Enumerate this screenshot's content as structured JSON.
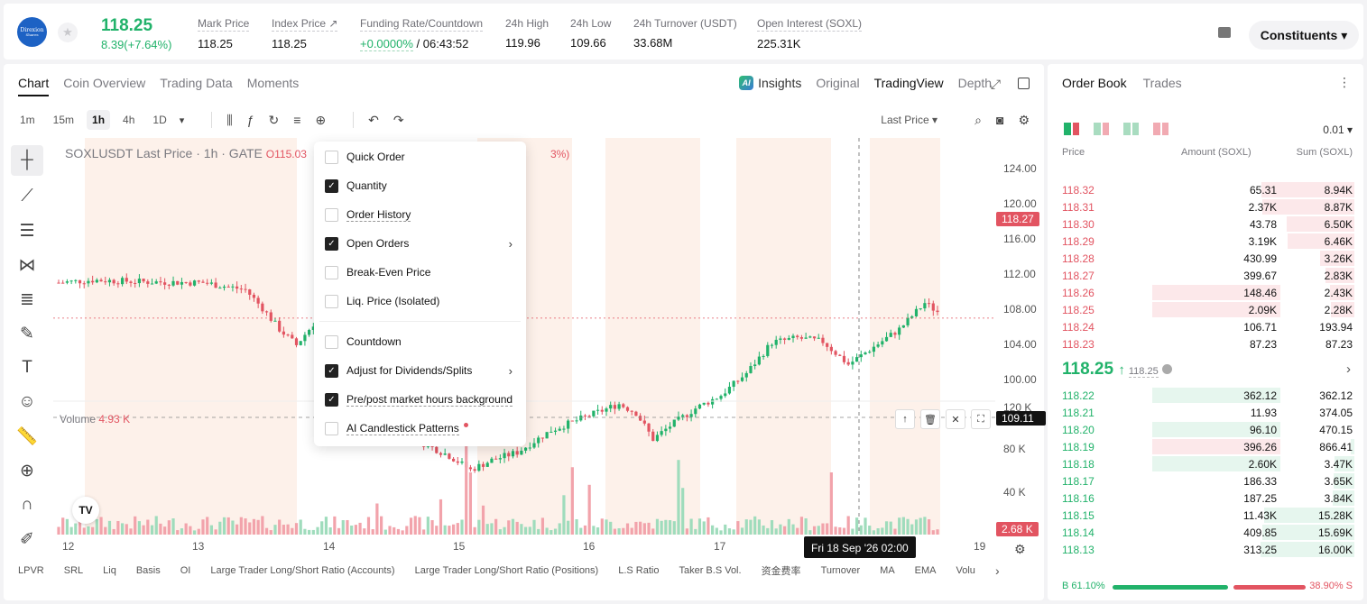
{
  "header": {
    "logo_text": "Direxion",
    "logo_sub": "Shares",
    "last_price": "118.25",
    "change": "8.39(+7.64%)",
    "stats": [
      {
        "label": "Mark Price",
        "value": "118.25"
      },
      {
        "label": "Index Price ↗",
        "value": "118.25"
      },
      {
        "label": "Funding Rate/Countdown",
        "value_green": "+0.0000%",
        "value": " / 06:43:52"
      },
      {
        "label": "24h High",
        "value": "119.96"
      },
      {
        "label": "24h Low",
        "value": "109.66"
      },
      {
        "label": "24h Turnover (USDT)",
        "value": "33.68M"
      },
      {
        "label": "Open Interest (SOXL)",
        "value": "225.31K"
      }
    ],
    "constituents_label": "Constituents ▾"
  },
  "chart_tabs": [
    "Chart",
    "Coin Overview",
    "Trading Data",
    "Moments"
  ],
  "views": {
    "insights": "Insights",
    "original": "Original",
    "tradingview": "TradingView",
    "depth": "Depth"
  },
  "timeframes": [
    "1m",
    "15m",
    "1h",
    "4h",
    "1D"
  ],
  "timeframe_dropdown": "▾",
  "last_price_selector": "Last Price ▾",
  "legend": {
    "title": "SOXLUSDT Last Price · 1h · GATE",
    "ohlc": "O115.03",
    "pct": "3%)"
  },
  "volume_label": {
    "name": "Volume",
    "value": "4.93 K"
  },
  "price_axis": {
    "ticks": [
      "124.00",
      "120.00",
      "116.00",
      "112.00",
      "108.00",
      "104.00",
      "100.00",
      "120 K",
      "80 K",
      "40 K"
    ],
    "last_badge": "118.27",
    "hover_badge": "109.11 K",
    "vol_badge": "2.68 K"
  },
  "time_axis": {
    "ticks": [
      "12",
      "13",
      "14",
      "15",
      "16",
      "17",
      "19"
    ],
    "hover_label": "Fri 18 Sep '26    02:00"
  },
  "indicators": [
    "LPVR",
    "SRL",
    "Liq",
    "Basis",
    "OI",
    "Large Trader Long/Short Ratio (Accounts)",
    "Large Trader Long/Short Ratio (Positions)",
    "L.S Ratio",
    "Taker B.S Vol.",
    "资金费率",
    "Turnover",
    "MA",
    "EMA",
    "Volu"
  ],
  "menu": {
    "items": [
      {
        "label": "Quick Order",
        "checked": false
      },
      {
        "label": "Quantity",
        "checked": true
      },
      {
        "label": "Order History",
        "checked": false,
        "underline": true
      },
      {
        "label": "Open Orders",
        "checked": true,
        "submenu": true
      },
      {
        "label": "Break-Even Price",
        "checked": false
      },
      {
        "label": "Liq. Price (Isolated)",
        "checked": false
      },
      {
        "label": "Countdown",
        "checked": false
      },
      {
        "label": "Adjust for Dividends/Splits",
        "checked": true,
        "submenu": true
      },
      {
        "label": "Pre/post market hours background",
        "checked": true,
        "underline": true
      },
      {
        "label": "AI Candlestick Patterns",
        "checked": false,
        "underline": true,
        "dot": true
      }
    ]
  },
  "orderbook": {
    "tabs": [
      "Order Book",
      "Trades"
    ],
    "precision": "0.01 ▾",
    "headers": {
      "price": "Price",
      "amount": "Amount (SOXL)",
      "sum": "Sum (SOXL)"
    },
    "asks": [
      {
        "price": "118.32",
        "amount": "65.31",
        "sum": "8.94K",
        "amt_frac": 0.0,
        "sum_frac": 0.98
      },
      {
        "price": "118.31",
        "amount": "2.37K",
        "sum": "8.87K",
        "amt_frac": 0.0,
        "sum_frac": 0.97
      },
      {
        "price": "118.30",
        "amount": "43.78",
        "sum": "6.50K",
        "amt_frac": 0.0,
        "sum_frac": 0.71
      },
      {
        "price": "118.29",
        "amount": "3.19K",
        "sum": "6.46K",
        "amt_frac": 0.0,
        "sum_frac": 0.7
      },
      {
        "price": "118.28",
        "amount": "430.99",
        "sum": "3.26K",
        "amt_frac": 0.0,
        "sum_frac": 0.36
      },
      {
        "price": "118.27",
        "amount": "399.67",
        "sum": "2.83K",
        "amt_frac": 0.0,
        "sum_frac": 0.3
      },
      {
        "price": "118.26",
        "amount": "148.46",
        "sum": "2.43K",
        "amt_frac": 1.0,
        "sum_frac": 0.26
      },
      {
        "price": "118.25",
        "amount": "2.09K",
        "sum": "2.28K",
        "amt_frac": 1.0,
        "sum_frac": 0.25
      },
      {
        "price": "118.24",
        "amount": "106.71",
        "sum": "193.94",
        "amt_frac": 0.0,
        "sum_frac": 0.0
      },
      {
        "price": "118.23",
        "amount": "87.23",
        "sum": "87.23",
        "amt_frac": 0.0,
        "sum_frac": 0.0
      }
    ],
    "mid": {
      "price": "118.25",
      "arrow": "↑",
      "mark": "118.25"
    },
    "bids": [
      {
        "price": "118.22",
        "amount": "362.12",
        "sum": "362.12",
        "amt_frac": 1.0,
        "sum_frac": 0.0,
        "amt_red": false
      },
      {
        "price": "118.21",
        "amount": "11.93",
        "sum": "374.05",
        "amt_frac": 0.0,
        "sum_frac": 0.0,
        "amt_red": false
      },
      {
        "price": "118.20",
        "amount": "96.10",
        "sum": "470.15",
        "amt_frac": 1.0,
        "sum_frac": 0.0,
        "amt_red": false
      },
      {
        "price": "118.19",
        "amount": "396.26",
        "sum": "866.41",
        "amt_frac": 1.0,
        "sum_frac": 0.04,
        "amt_red": true
      },
      {
        "price": "118.18",
        "amount": "2.60K",
        "sum": "3.47K",
        "amt_frac": 1.0,
        "sum_frac": 0.21,
        "amt_red": false
      },
      {
        "price": "118.17",
        "amount": "186.33",
        "sum": "3.65K",
        "amt_frac": 0.0,
        "sum_frac": 0.22,
        "amt_red": false
      },
      {
        "price": "118.16",
        "amount": "187.25",
        "sum": "3.84K",
        "amt_frac": 0.0,
        "sum_frac": 0.23,
        "amt_red": false
      },
      {
        "price": "118.15",
        "amount": "11.43K",
        "sum": "15.28K",
        "amt_frac": 0.0,
        "sum_frac": 0.95,
        "amt_red": false
      },
      {
        "price": "118.14",
        "amount": "409.85",
        "sum": "15.69K",
        "amt_frac": 0.0,
        "sum_frac": 0.97,
        "amt_red": false
      },
      {
        "price": "118.13",
        "amount": "313.25",
        "sum": "16.00K",
        "amt_frac": 0.0,
        "sum_frac": 0.99,
        "amt_red": false
      }
    ],
    "buy_ratio": "B 61.10%",
    "sell_ratio": "38.90% S"
  },
  "colors": {
    "up": "#21b26a",
    "down": "#e25461",
    "text": "#121212"
  }
}
